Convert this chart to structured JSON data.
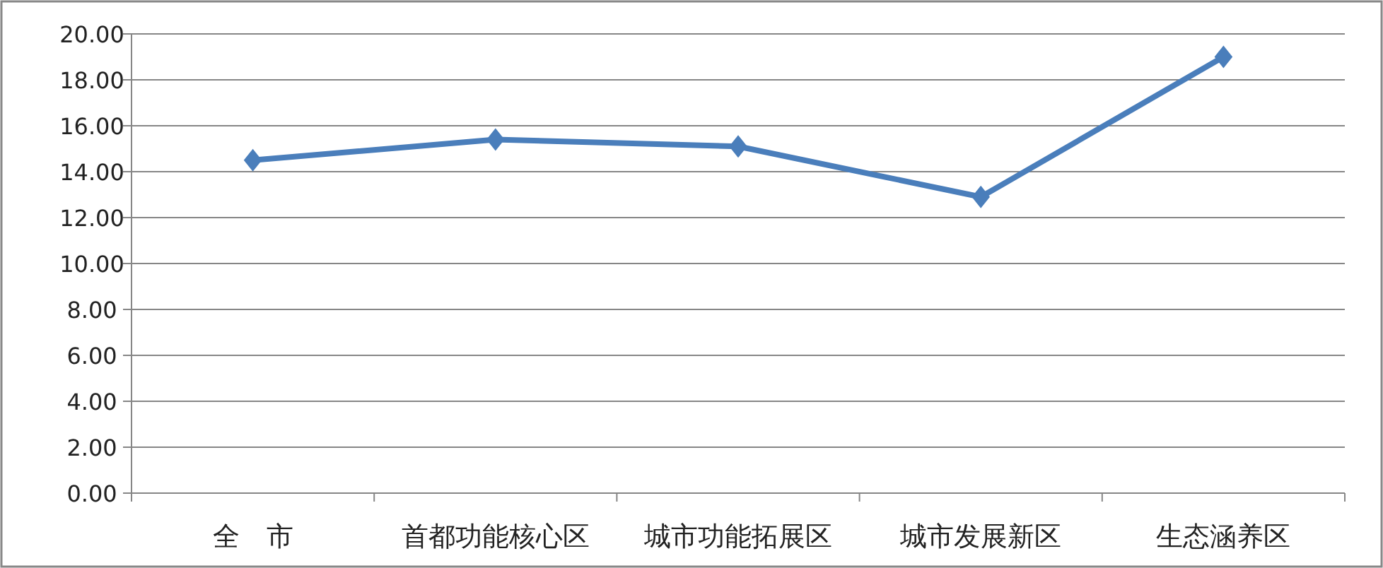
{
  "chart_data": {
    "type": "line",
    "categories": [
      "全　市",
      "首都功能核心区",
      "城市功能拓展区",
      "城市发展新区",
      "生态涵养区"
    ],
    "series": [
      {
        "color": "#4a7ebb",
        "values": [
          14.5,
          15.4,
          15.1,
          12.9,
          19.0
        ]
      }
    ],
    "ylim": [
      0,
      20
    ],
    "yticks": [
      {
        "value": 0,
        "label": "0.00"
      },
      {
        "value": 2,
        "label": "2.00"
      },
      {
        "value": 4,
        "label": "4.00"
      },
      {
        "value": 6,
        "label": "6.00"
      },
      {
        "value": 8,
        "label": "8.00"
      },
      {
        "value": 10,
        "label": "10.00"
      },
      {
        "value": 12,
        "label": "12.00"
      },
      {
        "value": 14,
        "label": "14.00"
      },
      {
        "value": 16,
        "label": "16.00"
      },
      {
        "value": 18,
        "label": "18.00"
      },
      {
        "value": 20,
        "label": "20.00"
      }
    ],
    "grid": "y",
    "marker": "diamond",
    "line_style": "solid"
  }
}
